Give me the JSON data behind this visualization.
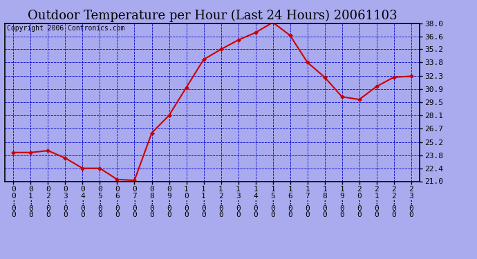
{
  "title": "Outdoor Temperature per Hour (Last 24 Hours) 20061103",
  "copyright": "Copyright 2006 Contronics.com",
  "hours": [
    "00:00",
    "01:00",
    "02:00",
    "03:00",
    "04:00",
    "05:00",
    "06:00",
    "07:00",
    "08:00",
    "09:00",
    "10:00",
    "11:00",
    "12:00",
    "13:00",
    "14:00",
    "15:00",
    "16:00",
    "17:00",
    "18:00",
    "19:00",
    "20:00",
    "21:00",
    "22:00",
    "23:00"
  ],
  "values": [
    24.1,
    24.1,
    24.3,
    23.5,
    22.4,
    22.4,
    21.2,
    21.1,
    26.2,
    28.1,
    31.1,
    34.1,
    35.2,
    36.2,
    37.0,
    38.1,
    36.7,
    33.8,
    32.2,
    30.1,
    29.8,
    31.2,
    32.2,
    32.3
  ],
  "ylim": [
    21.0,
    38.0
  ],
  "yticks": [
    21.0,
    22.4,
    23.8,
    25.2,
    26.7,
    28.1,
    29.5,
    30.9,
    32.3,
    33.8,
    35.2,
    36.6,
    38.0
  ],
  "line_color": "#cc0000",
  "marker_color": "#cc0000",
  "bg_color": "#aaaaee",
  "plot_bg_color": "#aaaaee",
  "grid_color": "#0000cc",
  "border_color": "#000000",
  "title_fontsize": 13,
  "copyright_fontsize": 7,
  "tick_fontsize": 8
}
